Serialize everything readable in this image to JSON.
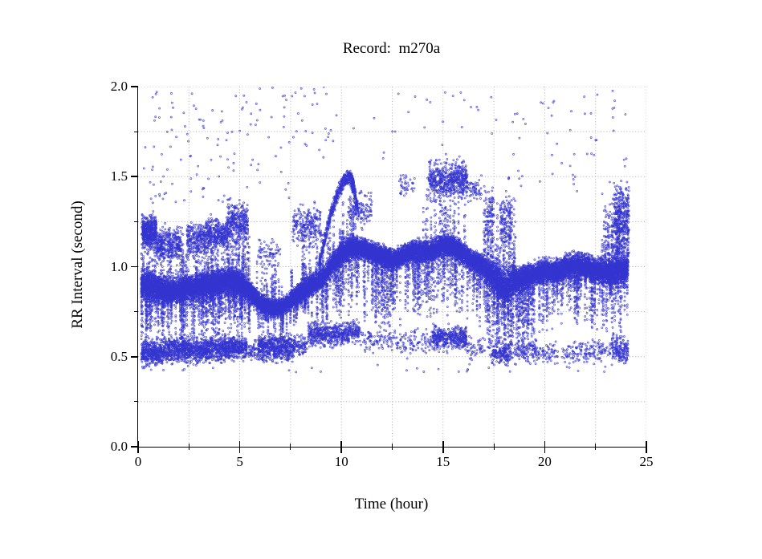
{
  "figure": {
    "title": "Record:  m270a",
    "xlabel": "Time (hour)",
    "ylabel": "RR Interval (second)"
  },
  "chart_data": {
    "type": "scatter",
    "title": "Record:  m270a",
    "xlabel": "Time (hour)",
    "ylabel": "RR Interval (second)",
    "xlim": [
      0,
      25
    ],
    "ylim": [
      0,
      2
    ],
    "x_major_ticks": [
      0,
      5,
      10,
      15,
      20,
      25
    ],
    "x_tick_labels": [
      "0",
      "5",
      "10",
      "15",
      "20",
      "25"
    ],
    "x_minor_step": 2.5,
    "y_major_ticks": [
      0.0,
      0.5,
      1.0,
      1.5,
      2.0
    ],
    "y_tick_labels": [
      "0.0",
      "0.5",
      "1.0",
      "1.5",
      "2.0"
    ],
    "y_minor_step": 0.25,
    "grid": "dotted",
    "grid_color": "#a8a8a8",
    "marker": {
      "shape": "open-circle",
      "radius_px": 1.0,
      "color": "#3434cf",
      "alpha": 0.8
    },
    "seed": 20270,
    "t_range": [
      0.15,
      24.1
    ],
    "main_band": {
      "n": 20000,
      "note": "baseline entries are [t_hours, mean_RR_sec, half_width_sec]",
      "baseline": [
        [
          0.15,
          0.9,
          0.1
        ],
        [
          0.5,
          0.9,
          0.1
        ],
        [
          1.0,
          0.88,
          0.09
        ],
        [
          1.5,
          0.86,
          0.08
        ],
        [
          2.0,
          0.87,
          0.08
        ],
        [
          2.5,
          0.88,
          0.09
        ],
        [
          3.0,
          0.89,
          0.09
        ],
        [
          3.5,
          0.9,
          0.09
        ],
        [
          4.0,
          0.91,
          0.09
        ],
        [
          4.5,
          0.92,
          0.08
        ],
        [
          5.0,
          0.91,
          0.08
        ],
        [
          5.5,
          0.86,
          0.07
        ],
        [
          6.0,
          0.8,
          0.06
        ],
        [
          6.5,
          0.77,
          0.05
        ],
        [
          7.0,
          0.77,
          0.05
        ],
        [
          7.5,
          0.81,
          0.06
        ],
        [
          8.0,
          0.86,
          0.07
        ],
        [
          8.5,
          0.9,
          0.07
        ],
        [
          9.0,
          0.93,
          0.06
        ],
        [
          9.3,
          0.97,
          0.06
        ],
        [
          9.6,
          1.02,
          0.07
        ],
        [
          10.0,
          1.07,
          0.08
        ],
        [
          10.5,
          1.11,
          0.08
        ],
        [
          11.0,
          1.1,
          0.07
        ],
        [
          11.5,
          1.08,
          0.07
        ],
        [
          12.0,
          1.06,
          0.07
        ],
        [
          12.5,
          1.04,
          0.07
        ],
        [
          13.0,
          1.06,
          0.07
        ],
        [
          13.5,
          1.09,
          0.07
        ],
        [
          14.0,
          1.08,
          0.07
        ],
        [
          14.5,
          1.09,
          0.07
        ],
        [
          15.0,
          1.12,
          0.07
        ],
        [
          15.5,
          1.11,
          0.07
        ],
        [
          16.0,
          1.07,
          0.07
        ],
        [
          16.5,
          1.03,
          0.07
        ],
        [
          17.0,
          1.0,
          0.08
        ],
        [
          17.5,
          0.95,
          0.1
        ],
        [
          18.0,
          0.88,
          0.12
        ],
        [
          18.5,
          0.92,
          0.09
        ],
        [
          19.0,
          0.94,
          0.08
        ],
        [
          19.5,
          0.96,
          0.08
        ],
        [
          20.0,
          0.98,
          0.08
        ],
        [
          20.5,
          0.97,
          0.08
        ],
        [
          21.0,
          0.99,
          0.08
        ],
        [
          21.5,
          1.01,
          0.08
        ],
        [
          22.0,
          1.0,
          0.08
        ],
        [
          22.5,
          0.98,
          0.08
        ],
        [
          23.0,
          0.97,
          0.08
        ],
        [
          23.5,
          0.97,
          0.09
        ],
        [
          24.0,
          0.98,
          0.09
        ]
      ]
    },
    "down_spikes": [
      {
        "t": [
          0.15,
          5.5
        ],
        "n": 180,
        "depth": [
          0.08,
          0.32
        ]
      },
      {
        "t": [
          5.5,
          8.5
        ],
        "n": 60,
        "depth": [
          0.05,
          0.18
        ]
      },
      {
        "t": [
          8.5,
          13.0
        ],
        "n": 120,
        "depth": [
          0.1,
          0.42
        ]
      },
      {
        "t": [
          13.0,
          17.0
        ],
        "n": 90,
        "depth": [
          0.1,
          0.4
        ]
      },
      {
        "t": [
          17.0,
          19.5
        ],
        "n": 115,
        "depth": [
          0.1,
          0.45
        ]
      },
      {
        "t": [
          19.5,
          24.1
        ],
        "n": 110,
        "depth": [
          0.08,
          0.35
        ]
      }
    ],
    "up_spikes": [
      {
        "t": [
          0.15,
          5.5
        ],
        "n": 115,
        "h": [
          0.1,
          0.38
        ]
      },
      {
        "t": [
          5.8,
          7.6
        ],
        "n": 25,
        "h": [
          0.08,
          0.28
        ]
      },
      {
        "t": [
          8.0,
          10.8
        ],
        "n": 40,
        "h": [
          0.08,
          0.3
        ]
      },
      {
        "t": [
          14.0,
          16.3
        ],
        "n": 25,
        "h": [
          0.15,
          0.45
        ]
      },
      {
        "t": [
          17.0,
          18.6
        ],
        "n": 48,
        "h": [
          0.1,
          0.5
        ]
      },
      {
        "t": [
          22.8,
          24.12
        ],
        "n": 55,
        "h": [
          0.1,
          0.45
        ]
      }
    ],
    "upper_clusters": [
      {
        "t": [
          0.2,
          0.9
        ],
        "rr": [
          1.08,
          1.3
        ],
        "n": 480
      },
      {
        "t": [
          0.9,
          2.1
        ],
        "rr": [
          1.02,
          1.22
        ],
        "n": 340
      },
      {
        "t": [
          2.4,
          3.3
        ],
        "rr": [
          1.05,
          1.25
        ],
        "n": 240
      },
      {
        "t": [
          3.3,
          4.4
        ],
        "rr": [
          1.08,
          1.28
        ],
        "n": 340
      },
      {
        "t": [
          4.4,
          5.4
        ],
        "rr": [
          1.1,
          1.38
        ],
        "n": 330
      },
      {
        "t": [
          5.9,
          7.0
        ],
        "rr": [
          0.98,
          1.15
        ],
        "n": 70
      },
      {
        "t": [
          7.6,
          9.0
        ],
        "rr": [
          1.1,
          1.35
        ],
        "n": 250
      },
      {
        "t": [
          10.3,
          11.5
        ],
        "rr": [
          1.2,
          1.43
        ],
        "n": 130
      },
      {
        "t": [
          12.8,
          13.6
        ],
        "rr": [
          1.38,
          1.52
        ],
        "n": 40
      },
      {
        "t": [
          14.3,
          16.2
        ],
        "rr": [
          1.36,
          1.6
        ],
        "n": 560
      },
      {
        "t": [
          16.2,
          16.9
        ],
        "rr": [
          1.35,
          1.5
        ],
        "n": 55
      },
      {
        "t": [
          17.1,
          17.5
        ],
        "rr": [
          1.05,
          1.45
        ],
        "n": 85
      },
      {
        "t": [
          17.8,
          18.4
        ],
        "rr": [
          1.05,
          1.42
        ],
        "n": 150
      },
      {
        "t": [
          23.4,
          24.15
        ],
        "rr": [
          1.05,
          1.47
        ],
        "n": 360
      }
    ],
    "rise_arc": {
      "path": [
        [
          8.9,
          1.0
        ],
        [
          9.2,
          1.16
        ],
        [
          9.5,
          1.3
        ],
        [
          9.8,
          1.4
        ],
        [
          10.1,
          1.47
        ],
        [
          10.4,
          1.5
        ],
        [
          10.6,
          1.45
        ],
        [
          10.8,
          1.3
        ]
      ],
      "jitter": 0.035,
      "n": 620
    },
    "low_band": [
      {
        "t": [
          0.15,
          1.2
        ],
        "rr": [
          0.44,
          0.6
        ],
        "n": 420
      },
      {
        "t": [
          1.2,
          2.3
        ],
        "rr": [
          0.46,
          0.62
        ],
        "n": 380
      },
      {
        "t": [
          2.3,
          3.4
        ],
        "rr": [
          0.46,
          0.62
        ],
        "n": 400
      },
      {
        "t": [
          3.4,
          4.6
        ],
        "rr": [
          0.47,
          0.63
        ],
        "n": 420
      },
      {
        "t": [
          4.6,
          5.35
        ],
        "rr": [
          0.48,
          0.62
        ],
        "n": 260
      },
      {
        "t": [
          5.35,
          5.9
        ],
        "rr": [
          0.46,
          0.6
        ],
        "n": 55
      },
      {
        "t": [
          5.9,
          7.7
        ],
        "rr": [
          0.47,
          0.63
        ],
        "n": 620
      },
      {
        "t": [
          7.7,
          8.35
        ],
        "rr": [
          0.5,
          0.62
        ],
        "n": 80
      },
      {
        "t": [
          8.35,
          10.4
        ],
        "rr": [
          0.55,
          0.7
        ],
        "n": 480
      },
      {
        "t": [
          10.4,
          10.9
        ],
        "rr": [
          0.58,
          0.7
        ],
        "n": 90
      },
      {
        "t": [
          10.9,
          12.5
        ],
        "rr": [
          0.52,
          0.66
        ],
        "n": 90
      },
      {
        "t": [
          12.5,
          14.5
        ],
        "rr": [
          0.5,
          0.66
        ],
        "n": 110
      },
      {
        "t": [
          14.5,
          16.15
        ],
        "rr": [
          0.53,
          0.68
        ],
        "n": 430
      },
      {
        "t": [
          16.15,
          17.4
        ],
        "rr": [
          0.48,
          0.62
        ],
        "n": 60
      },
      {
        "t": [
          17.4,
          18.3
        ],
        "rr": [
          0.44,
          0.6
        ],
        "n": 170
      },
      {
        "t": [
          18.3,
          19.6
        ],
        "rr": [
          0.46,
          0.6
        ],
        "n": 120
      },
      {
        "t": [
          19.6,
          21.3
        ],
        "rr": [
          0.45,
          0.58
        ],
        "n": 90
      },
      {
        "t": [
          21.3,
          23.3
        ],
        "rr": [
          0.46,
          0.6
        ],
        "n": 130
      },
      {
        "t": [
          23.3,
          24.1
        ],
        "rr": [
          0.46,
          0.62
        ],
        "n": 170
      },
      {
        "t": [
          0.3,
          24.0
        ],
        "rr": [
          0.4,
          0.46
        ],
        "n": 26
      }
    ],
    "high_scatter": [
      {
        "t": [
          0.2,
          2.6
        ],
        "rr": [
          1.35,
          1.98
        ],
        "n": 45
      },
      {
        "t": [
          2.6,
          5.0
        ],
        "rr": [
          1.35,
          1.97
        ],
        "n": 40
      },
      {
        "t": [
          5.0,
          8.3
        ],
        "rr": [
          1.38,
          2.0
        ],
        "n": 45
      },
      {
        "t": [
          8.3,
          9.5
        ],
        "rr": [
          1.6,
          2.0
        ],
        "n": 14
      },
      {
        "t": [
          9.5,
          14.2
        ],
        "rr": [
          1.6,
          2.0
        ],
        "n": 12
      },
      {
        "t": [
          14.2,
          17.0
        ],
        "rr": [
          1.62,
          2.0
        ],
        "n": 12
      },
      {
        "t": [
          17.0,
          20.5
        ],
        "rr": [
          1.42,
          1.98
        ],
        "n": 28
      },
      {
        "t": [
          20.5,
          24.1
        ],
        "rr": [
          1.38,
          1.98
        ],
        "n": 34
      }
    ]
  }
}
